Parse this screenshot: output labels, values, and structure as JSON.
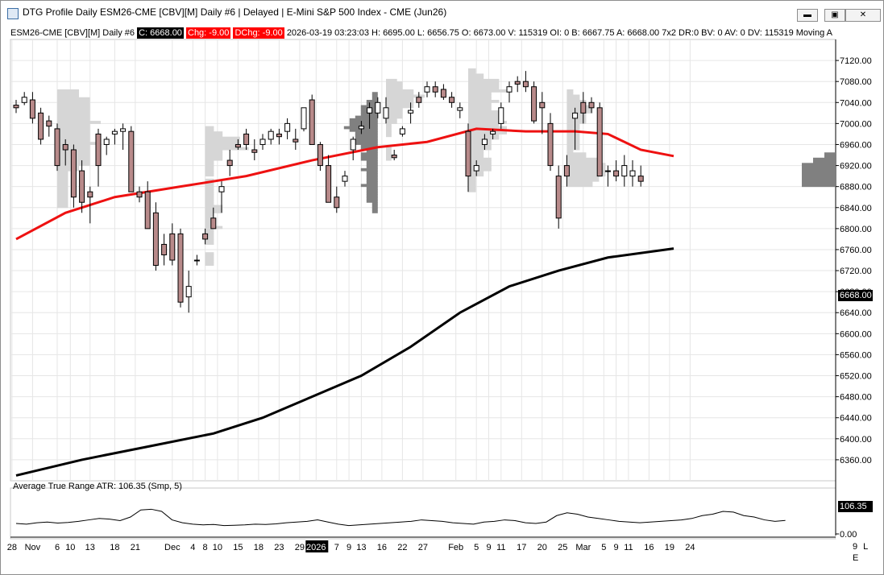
{
  "window": {
    "title": "DTG Profile Daily ESM26-CME [CBV][M]  Daily #6 | Delayed | E-Mini S&P 500 Index - CME (Jun26)",
    "buttons": {
      "minimize": "▬",
      "maximize": "▣",
      "close": "✕"
    }
  },
  "infobar": {
    "symbol": "ESM26-CME [CBV][M]  Daily #6",
    "close": "C: 6668.00",
    "chg": "Chg: -9.00",
    "dchg": "DChg: -9.00",
    "rest": "2026-03-19 03:23:03 H: 6695.00 L: 6656.75 O: 6673.00 V: 115319 OI: 0 B: 6667.75 A: 6668.00 7x2 DR:0 BV: 0 AV: 0 DV: 115319 Moving A"
  },
  "colors": {
    "background": "#ffffff",
    "grid": "#e6e6e6",
    "up_candle": "#ffffff",
    "down_candle": "#b88a8a",
    "candle_outline": "#000000",
    "profile_light": "#d6d6d6",
    "profile_dark": "#808080",
    "ma_fast": "#ee1111",
    "ma_slow": "#000000",
    "price_tag": "#000000"
  },
  "price_tag": {
    "price": "6668.00",
    "atr": "106.35"
  },
  "atr_panel": {
    "label": "Average True Range  ATR: 106.35  (Smp, 5)",
    "axis_label": "0.00"
  },
  "corner": "9 L E",
  "chart_data": {
    "type": "candlestick",
    "y_axis": {
      "range": [
        6320,
        7160
      ],
      "ticks": [
        "7120.00",
        "7080.00",
        "7040.00",
        "7000.00",
        "6960.00",
        "6920.00",
        "6880.00",
        "6840.00",
        "6800.00",
        "6760.00",
        "6720.00",
        "6680.00",
        "6640.00",
        "6600.00",
        "6560.00",
        "6520.00",
        "6480.00",
        "6440.00",
        "6400.00",
        "6360.00"
      ]
    },
    "x_axis": {
      "labels": [
        {
          "t": "28",
          "i": -0.5
        },
        {
          "t": "Nov",
          "i": 2
        },
        {
          "t": "6",
          "i": 5
        },
        {
          "t": "10",
          "i": 6.6
        },
        {
          "t": "13",
          "i": 9
        },
        {
          "t": "18",
          "i": 12
        },
        {
          "t": "21",
          "i": 14.5
        },
        {
          "t": "Dec",
          "i": 19
        },
        {
          "t": "4",
          "i": 21.5
        },
        {
          "t": "8",
          "i": 23
        },
        {
          "t": "10",
          "i": 24.5
        },
        {
          "t": "15",
          "i": 27
        },
        {
          "t": "18",
          "i": 29.5
        },
        {
          "t": "23",
          "i": 32
        },
        {
          "t": "29",
          "i": 34.5
        },
        {
          "t": "2026",
          "i": 36.5,
          "hl": true
        },
        {
          "t": "7",
          "i": 39
        },
        {
          "t": "9",
          "i": 40.5
        },
        {
          "t": "13",
          "i": 42
        },
        {
          "t": "16",
          "i": 44.5
        },
        {
          "t": "22",
          "i": 47
        },
        {
          "t": "27",
          "i": 49.5
        },
        {
          "t": "Feb",
          "i": 53.5
        },
        {
          "t": "5",
          "i": 56
        },
        {
          "t": "9",
          "i": 57.5
        },
        {
          "t": "11",
          "i": 59
        },
        {
          "t": "17",
          "i": 61.5
        },
        {
          "t": "20",
          "i": 64
        },
        {
          "t": "25",
          "i": 66.5
        },
        {
          "t": "Mar",
          "i": 69
        },
        {
          "t": "5",
          "i": 71.5
        },
        {
          "t": "9",
          "i": 73
        },
        {
          "t": "11",
          "i": 74.5
        },
        {
          "t": "16",
          "i": 77
        },
        {
          "t": "19",
          "i": 79.5
        },
        {
          "t": "24",
          "i": 82
        }
      ]
    },
    "candles": [
      [
        7035,
        7045,
        7020,
        7030
      ],
      [
        7040,
        7060,
        7035,
        7050
      ],
      [
        7045,
        7060,
        7000,
        7010
      ],
      [
        7020,
        7030,
        6960,
        6970
      ],
      [
        7005,
        7015,
        6975,
        6995
      ],
      [
        6990,
        7000,
        6910,
        6920
      ],
      [
        6960,
        6970,
        6920,
        6950
      ],
      [
        6950,
        6960,
        6840,
        6860
      ],
      [
        6910,
        6930,
        6830,
        6850
      ],
      [
        6870,
        6880,
        6810,
        6860
      ],
      [
        6980,
        6990,
        6880,
        6920
      ],
      [
        6960,
        6975,
        6940,
        6970
      ],
      [
        6980,
        6990,
        6960,
        6985
      ],
      [
        6985,
        7000,
        6950,
        6990
      ],
      [
        6985,
        6995,
        6870,
        6870
      ],
      [
        6870,
        6880,
        6850,
        6860
      ],
      [
        6870,
        6890,
        6800,
        6800
      ],
      [
        6830,
        6850,
        6720,
        6730
      ],
      [
        6770,
        6790,
        6730,
        6750
      ],
      [
        6790,
        6810,
        6730,
        6740
      ],
      [
        6790,
        6800,
        6650,
        6660
      ],
      [
        6670,
        6720,
        6640,
        6690
      ],
      [
        6740,
        6750,
        6730,
        6740
      ],
      [
        6790,
        6800,
        6770,
        6780
      ],
      [
        6820,
        6840,
        6800,
        6800
      ],
      [
        6870,
        6890,
        6830,
        6880
      ],
      [
        6930,
        6950,
        6900,
        6920
      ],
      [
        6960,
        6970,
        6950,
        6955
      ],
      [
        6980,
        6990,
        6950,
        6960
      ],
      [
        6950,
        6970,
        6930,
        6945
      ],
      [
        6960,
        6980,
        6950,
        6970
      ],
      [
        6970,
        6990,
        6960,
        6985
      ],
      [
        6980,
        6990,
        6960,
        6975
      ],
      [
        6985,
        7010,
        6970,
        7000
      ],
      [
        6970,
        6990,
        6950,
        6965
      ],
      [
        6990,
        7030,
        6985,
        7030
      ],
      [
        7045,
        7055,
        6960,
        6960
      ],
      [
        6960,
        6965,
        6910,
        6920
      ],
      [
        6920,
        6940,
        6850,
        6850
      ],
      [
        6860,
        6880,
        6830,
        6840
      ],
      [
        6890,
        6910,
        6880,
        6900
      ],
      [
        6950,
        6975,
        6930,
        6970
      ],
      [
        6990,
        7005,
        6980,
        6995
      ],
      [
        7020,
        7040,
        6990,
        7030
      ],
      [
        7020,
        7050,
        7010,
        7040
      ],
      [
        7010,
        7050,
        7000,
        7030
      ],
      [
        6940,
        6950,
        6930,
        6935
      ],
      [
        6980,
        6995,
        6975,
        6990
      ],
      [
        7020,
        7040,
        7000,
        7025
      ],
      [
        7050,
        7060,
        7030,
        7040
      ],
      [
        7060,
        7080,
        7050,
        7070
      ],
      [
        7070,
        7080,
        7050,
        7060
      ],
      [
        7065,
        7075,
        7045,
        7050
      ],
      [
        7050,
        7060,
        7030,
        7040
      ],
      [
        7025,
        7040,
        7010,
        7030
      ],
      [
        6985,
        7000,
        6870,
        6900
      ],
      [
        6910,
        6930,
        6900,
        6920
      ],
      [
        6960,
        6980,
        6950,
        6970
      ],
      [
        6980,
        6990,
        6970,
        6985
      ],
      [
        7000,
        7040,
        6990,
        7030
      ],
      [
        7060,
        7080,
        7040,
        7070
      ],
      [
        7080,
        7090,
        7060,
        7075
      ],
      [
        7080,
        7100,
        7060,
        7070
      ],
      [
        7070,
        7080,
        7000,
        7005
      ],
      [
        7040,
        7060,
        6980,
        7030
      ],
      [
        7000,
        7020,
        6910,
        6920
      ],
      [
        6900,
        6920,
        6800,
        6820
      ],
      [
        6920,
        6940,
        6880,
        6900
      ],
      [
        7010,
        7030,
        6950,
        7020
      ],
      [
        7040,
        7060,
        7000,
        7020
      ],
      [
        7040,
        7050,
        7020,
        7030
      ],
      [
        7030,
        7040,
        6900,
        6900
      ],
      [
        6910,
        6920,
        6880,
        6910
      ],
      [
        6910,
        6930,
        6890,
        6900
      ],
      [
        6900,
        6940,
        6880,
        6920
      ],
      [
        6900,
        6930,
        6880,
        6910
      ],
      [
        6900,
        6920,
        6880,
        6890
      ]
    ],
    "series": [
      {
        "name": "ma_fast",
        "values": [
          [
            0,
            6780
          ],
          [
            6,
            6830
          ],
          [
            12,
            6860
          ],
          [
            20,
            6880
          ],
          [
            28,
            6900
          ],
          [
            36,
            6930
          ],
          [
            44,
            6955
          ],
          [
            50,
            6965
          ],
          [
            56,
            6990
          ],
          [
            62,
            6985
          ],
          [
            68,
            6985
          ],
          [
            72,
            6980
          ],
          [
            76,
            6950
          ],
          [
            80,
            6938
          ]
        ]
      },
      {
        "name": "ma_slow",
        "values": [
          [
            0,
            6330
          ],
          [
            8,
            6360
          ],
          [
            16,
            6385
          ],
          [
            24,
            6410
          ],
          [
            30,
            6440
          ],
          [
            36,
            6480
          ],
          [
            42,
            6520
          ],
          [
            48,
            6575
          ],
          [
            54,
            6640
          ],
          [
            60,
            6690
          ],
          [
            66,
            6720
          ],
          [
            72,
            6745
          ],
          [
            80,
            6762
          ]
        ]
      }
    ],
    "atr": {
      "range": [
        0,
        300
      ],
      "values": [
        85,
        80,
        90,
        95,
        88,
        92,
        100,
        110,
        120,
        115,
        105,
        130,
        180,
        185,
        170,
        110,
        90,
        80,
        75,
        78,
        70,
        72,
        75,
        80,
        78,
        82,
        90,
        95,
        100,
        110,
        95,
        80,
        70,
        75,
        80,
        85,
        90,
        95,
        100,
        110,
        105,
        100,
        90,
        85,
        80,
        95,
        100,
        110,
        105,
        90,
        85,
        95,
        140,
        160,
        150,
        130,
        120,
        110,
        100,
        95,
        90,
        95,
        100,
        105,
        110,
        120,
        140,
        150,
        170,
        165,
        140,
        130,
        110,
        100,
        106
      ]
    }
  }
}
